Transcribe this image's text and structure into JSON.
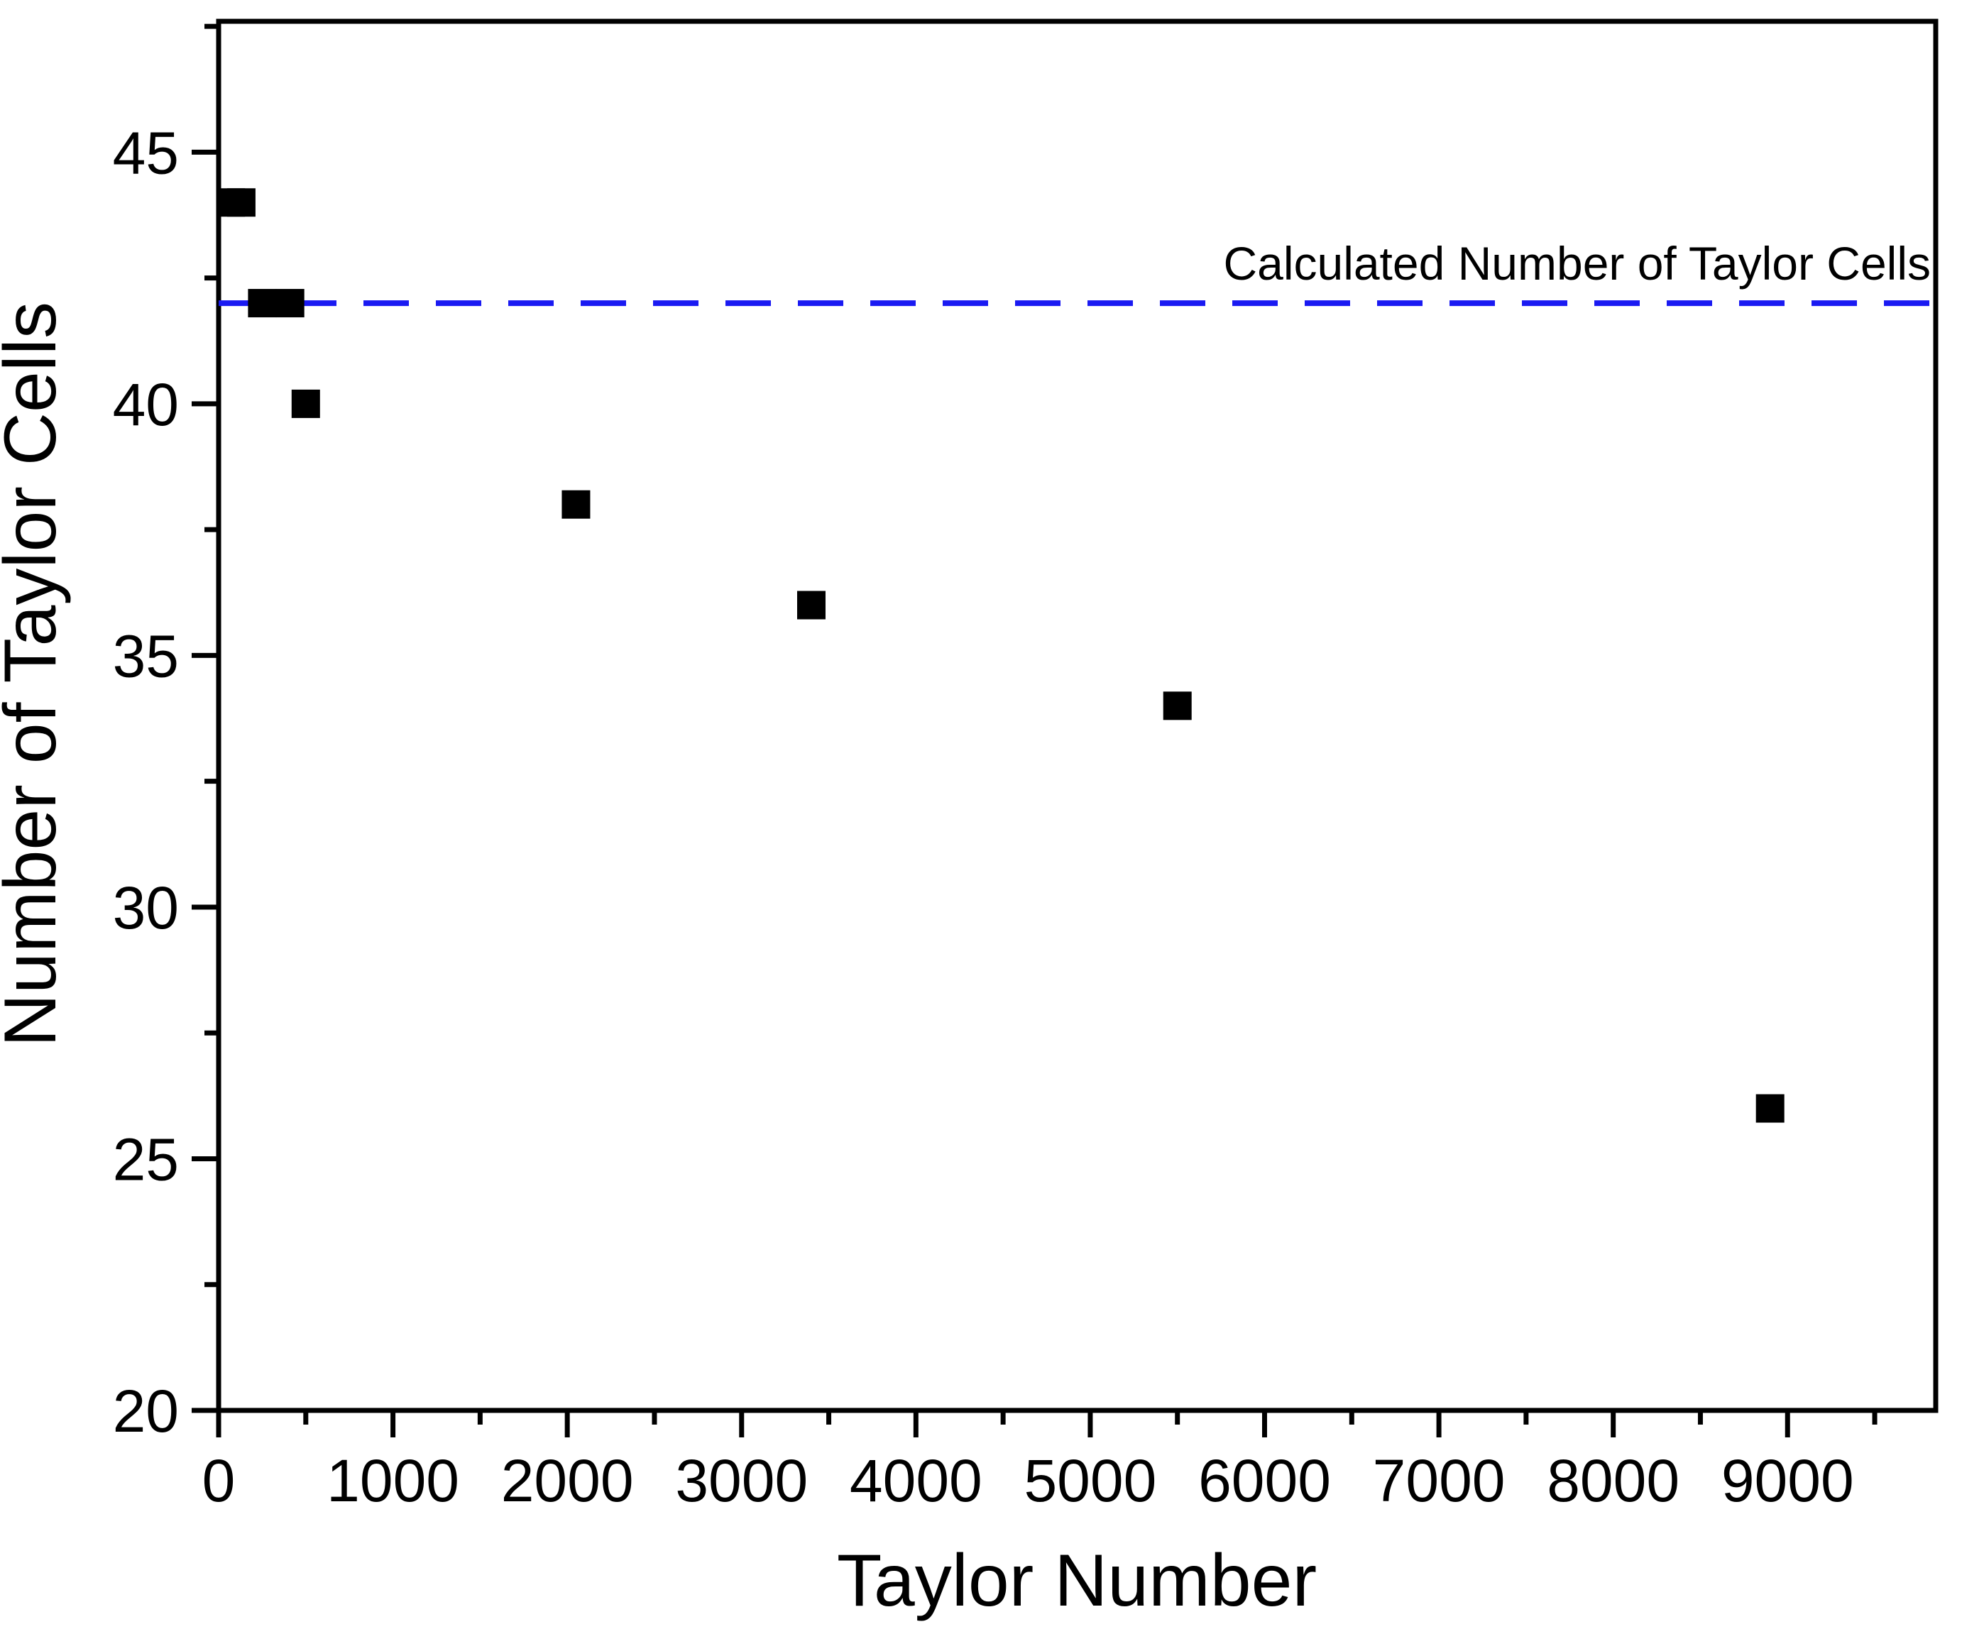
{
  "figure": {
    "background": "#ffffff",
    "frame_color": "#000000"
  },
  "chart_data": {
    "type": "scatter",
    "title": "",
    "xlabel": "Taylor Number",
    "ylabel": "Number of Taylor Cells",
    "xlim": [
      0,
      9850
    ],
    "ylim": [
      20,
      47.6
    ],
    "grid": false,
    "frame": "box",
    "x_major_ticks": [
      0,
      1000,
      2000,
      3000,
      4000,
      5000,
      6000,
      7000,
      8000,
      9000
    ],
    "x_minor_ticks": [
      500,
      1500,
      2500,
      3500,
      4500,
      5500,
      6500,
      7500,
      8500,
      9500
    ],
    "y_major_ticks": [
      20,
      25,
      30,
      35,
      40,
      45
    ],
    "y_minor_ticks": [
      22.5,
      27.5,
      32.5,
      37.5,
      42.5,
      47.5
    ],
    "series": [
      {
        "marker": "square",
        "color": "#000000",
        "marker_size": 40,
        "points": [
          [
            70,
            44
          ],
          [
            130,
            44
          ],
          [
            250,
            42
          ],
          [
            410,
            42
          ],
          [
            500,
            40
          ],
          [
            2050,
            38
          ],
          [
            3400,
            36
          ],
          [
            5500,
            34
          ],
          [
            8900,
            26
          ]
        ]
      }
    ],
    "reference_line": {
      "y": 42,
      "style": "dashed",
      "color": "#1a1af2",
      "label": "Calculated Number of Taylor Cells",
      "label_color": "#000000",
      "label_position": "above-right"
    }
  }
}
